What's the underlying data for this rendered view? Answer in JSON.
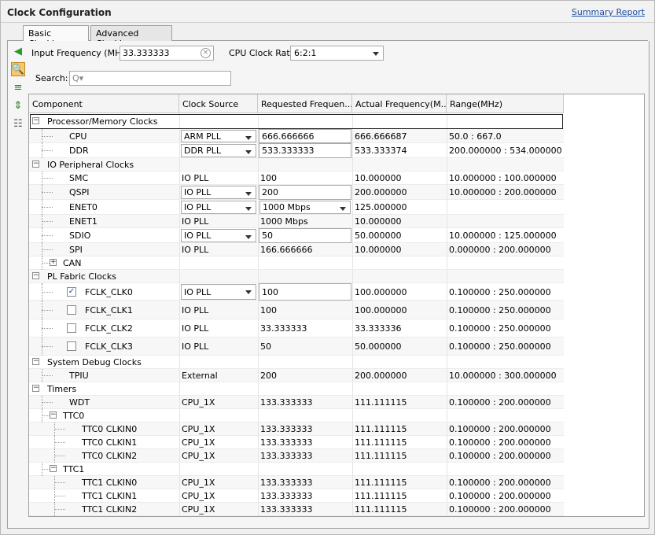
{
  "header": {
    "title": "Clock Configuration",
    "summary_link": "Summary Report"
  },
  "tabs": [
    {
      "label": "Basic Clocking",
      "active": true
    },
    {
      "label": "Advanced Clocking",
      "active": false
    }
  ],
  "sidebar_icons": [
    "back-arrow-icon",
    "search-icon",
    "collapse-all-icon",
    "expand-all-icon",
    "hierarchy-icon"
  ],
  "topbar": {
    "input_freq_label": "Input Frequency (MHz)",
    "input_freq_value": "33.333333",
    "cpu_ratio_label": "CPU Clock Ratio",
    "cpu_ratio_value": "6:2:1"
  },
  "search": {
    "label": "Search:",
    "placeholder": "Q▾"
  },
  "columns": [
    "Component",
    "Clock Source",
    "Requested Frequen...",
    "Actual Frequency(M...",
    "Range(MHz)"
  ],
  "rows": [
    {
      "level": 0,
      "name": "Processor/Memory Clocks",
      "group": true,
      "exp": "-",
      "selected": true
    },
    {
      "level": 1,
      "name": "CPU",
      "src": "ARM PLL",
      "src_dd": true,
      "req": "666.666666",
      "req_in": true,
      "act": "666.666687",
      "range": "50.0 : 667.0"
    },
    {
      "level": 1,
      "name": "DDR",
      "src": "DDR PLL",
      "src_dd": true,
      "req": "533.333333",
      "req_in": true,
      "act": "533.333374",
      "range": "200.000000 : 534.000000"
    },
    {
      "level": 0,
      "name": "IO Peripheral Clocks",
      "group": true,
      "exp": "-"
    },
    {
      "level": 1,
      "name": "SMC",
      "src": "IO PLL",
      "req": "100",
      "act": "10.000000",
      "range": "10.000000 : 100.000000"
    },
    {
      "level": 1,
      "name": "QSPI",
      "src": "IO PLL",
      "src_dd": true,
      "req": "200",
      "req_in": true,
      "act": "200.000000",
      "range": "10.000000 : 200.000000"
    },
    {
      "level": 1,
      "name": "ENET0",
      "src": "IO PLL",
      "src_dd": true,
      "req": "1000 Mbps",
      "req_dd": true,
      "act": "125.000000",
      "range": ""
    },
    {
      "level": 1,
      "name": "ENET1",
      "src": "IO PLL",
      "req": "1000 Mbps",
      "act": "10.000000",
      "range": ""
    },
    {
      "level": 1,
      "name": "SDIO",
      "src": "IO PLL",
      "src_dd": true,
      "req": "50",
      "req_in": true,
      "act": "50.000000",
      "range": "10.000000 : 125.000000"
    },
    {
      "level": 1,
      "name": "SPI",
      "src": "IO PLL",
      "req": "166.666666",
      "act": "10.000000",
      "range": "0.000000 : 200.000000"
    },
    {
      "level": 1,
      "name": "CAN",
      "exp": "+"
    },
    {
      "level": 0,
      "name": "PL Fabric Clocks",
      "group": true,
      "exp": "-"
    },
    {
      "level": 1,
      "name": "FCLK_CLK0",
      "cb": true,
      "checked": true,
      "src": "IO PLL",
      "src_dd": true,
      "req": "100",
      "req_in": true,
      "act": "100.000000",
      "range": "0.100000 : 250.000000"
    },
    {
      "level": 1,
      "name": "FCLK_CLK1",
      "cb": true,
      "checked": false,
      "src": "IO PLL",
      "req": "100",
      "act": "100.000000",
      "range": "0.100000 : 250.000000"
    },
    {
      "level": 1,
      "name": "FCLK_CLK2",
      "cb": true,
      "checked": false,
      "src": "IO PLL",
      "req": "33.333333",
      "act": "33.333336",
      "range": "0.100000 : 250.000000"
    },
    {
      "level": 1,
      "name": "FCLK_CLK3",
      "cb": true,
      "checked": false,
      "src": "IO PLL",
      "req": "50",
      "act": "50.000000",
      "range": "0.100000 : 250.000000"
    },
    {
      "level": 0,
      "name": "System Debug Clocks",
      "group": true,
      "exp": "-"
    },
    {
      "level": 1,
      "name": "TPIU",
      "src": "External",
      "req": "200",
      "act": "200.000000",
      "range": "10.000000 : 300.000000"
    },
    {
      "level": 0,
      "name": "Timers",
      "group": true,
      "exp": "-"
    },
    {
      "level": 1,
      "name": "WDT",
      "src": "CPU_1X",
      "req": "133.333333",
      "act": "111.111115",
      "range": "0.100000 : 200.000000"
    },
    {
      "level": 1,
      "name": "TTC0",
      "exp": "-"
    },
    {
      "level": 2,
      "name": "TTC0 CLKIN0",
      "src": "CPU_1X",
      "req": "133.333333",
      "act": "111.111115",
      "range": "0.100000 : 200.000000"
    },
    {
      "level": 2,
      "name": "TTC0 CLKIN1",
      "src": "CPU_1X",
      "req": "133.333333",
      "act": "111.111115",
      "range": "0.100000 : 200.000000"
    },
    {
      "level": 2,
      "name": "TTC0 CLKIN2",
      "src": "CPU_1X",
      "req": "133.333333",
      "act": "111.111115",
      "range": "0.100000 : 200.000000"
    },
    {
      "level": 1,
      "name": "TTC1",
      "exp": "-"
    },
    {
      "level": 2,
      "name": "TTC1 CLKIN0",
      "src": "CPU_1X",
      "req": "133.333333",
      "act": "111.111115",
      "range": "0.100000 : 200.000000"
    },
    {
      "level": 2,
      "name": "TTC1 CLKIN1",
      "src": "CPU_1X",
      "req": "133.333333",
      "act": "111.111115",
      "range": "0.100000 : 200.000000"
    },
    {
      "level": 2,
      "name": "TTC1 CLKIN2",
      "src": "CPU_1X",
      "req": "133.333333",
      "act": "111.111115",
      "range": "0.100000 : 200.000000"
    }
  ],
  "colors": {
    "accent": "#1a4fa8",
    "selected_tool": "#f7c768"
  }
}
